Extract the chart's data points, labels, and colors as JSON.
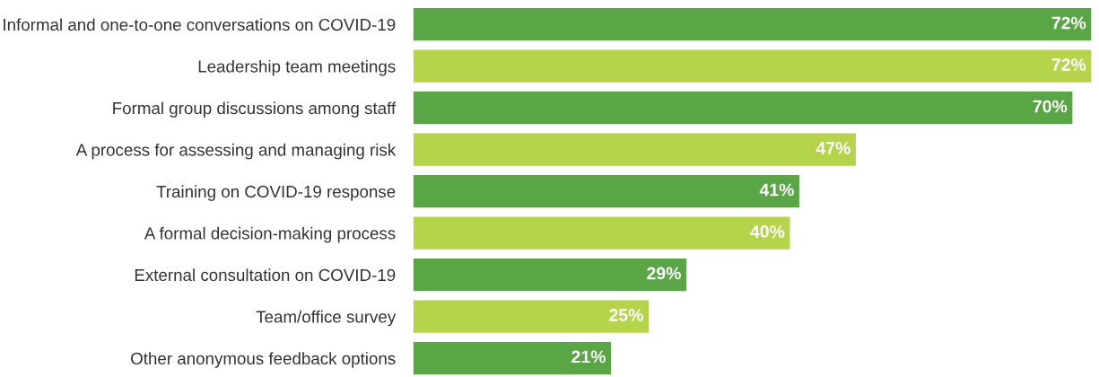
{
  "chart_data": {
    "type": "bar",
    "orientation": "horizontal",
    "categories": [
      "Informal and one-to-one conversations on COVID-19",
      "Leadership team meetings",
      "Formal group discussions among staff",
      "A process for assessing and managing risk",
      "Training on COVID-19 response",
      "A formal decision-making process",
      "External consultation on COVID-19",
      "Team/office survey",
      "Other anonymous feedback options"
    ],
    "values": [
      72,
      72,
      70,
      47,
      41,
      40,
      29,
      25,
      21
    ],
    "value_labels": [
      "72%",
      "72%",
      "70%",
      "47%",
      "41%",
      "40%",
      "29%",
      "25%",
      "21%"
    ],
    "colors": [
      "#5aa546",
      "#b5d34b",
      "#5aa546",
      "#b5d34b",
      "#5aa546",
      "#b5d34b",
      "#5aa546",
      "#b5d34b",
      "#5aa546"
    ],
    "grid": false,
    "legend": false
  }
}
